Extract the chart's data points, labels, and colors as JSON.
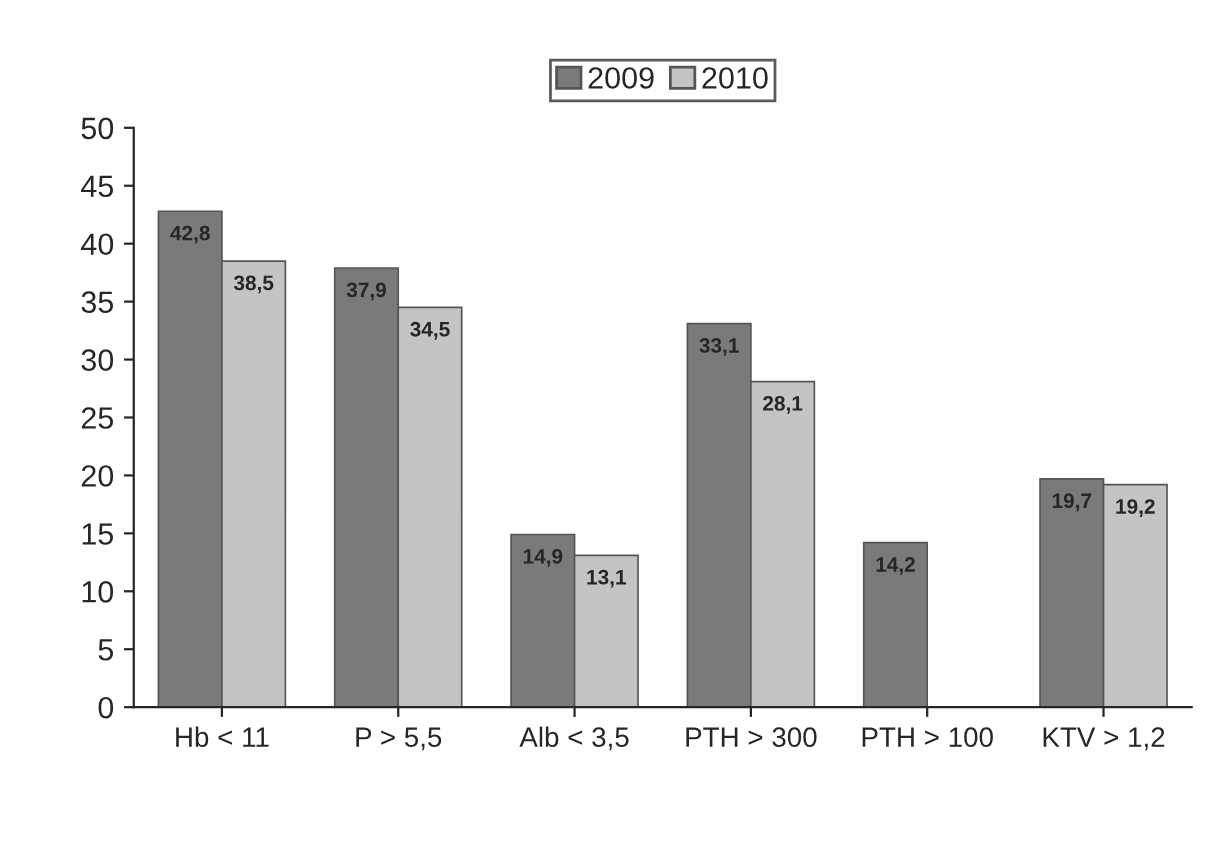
{
  "chart_data": {
    "type": "bar",
    "categories": [
      "Hb < 11",
      "P > 5,5",
      "Alb < 3,5",
      "PTH > 300",
      "PTH > 100",
      "KTV > 1,2"
    ],
    "series": [
      {
        "name": "2009",
        "color": "#7a7a7a",
        "values": [
          42.8,
          37.9,
          14.9,
          33.1,
          14.2,
          19.7
        ],
        "value_labels": [
          "42,8",
          "37,9",
          "14,9",
          "33,1",
          "14,2",
          "19,7"
        ]
      },
      {
        "name": "2010",
        "color": "#c4c4c4",
        "values": [
          38.5,
          34.5,
          13.1,
          28.1,
          null,
          19.2
        ],
        "value_labels": [
          "38,5",
          "34,5",
          "13,1",
          "28,1",
          null,
          "19,2"
        ]
      }
    ],
    "ylim": [
      0,
      50
    ],
    "yticks": [
      0,
      5,
      10,
      15,
      20,
      25,
      30,
      35,
      40,
      45,
      50
    ],
    "grid": false,
    "legend": "top"
  }
}
